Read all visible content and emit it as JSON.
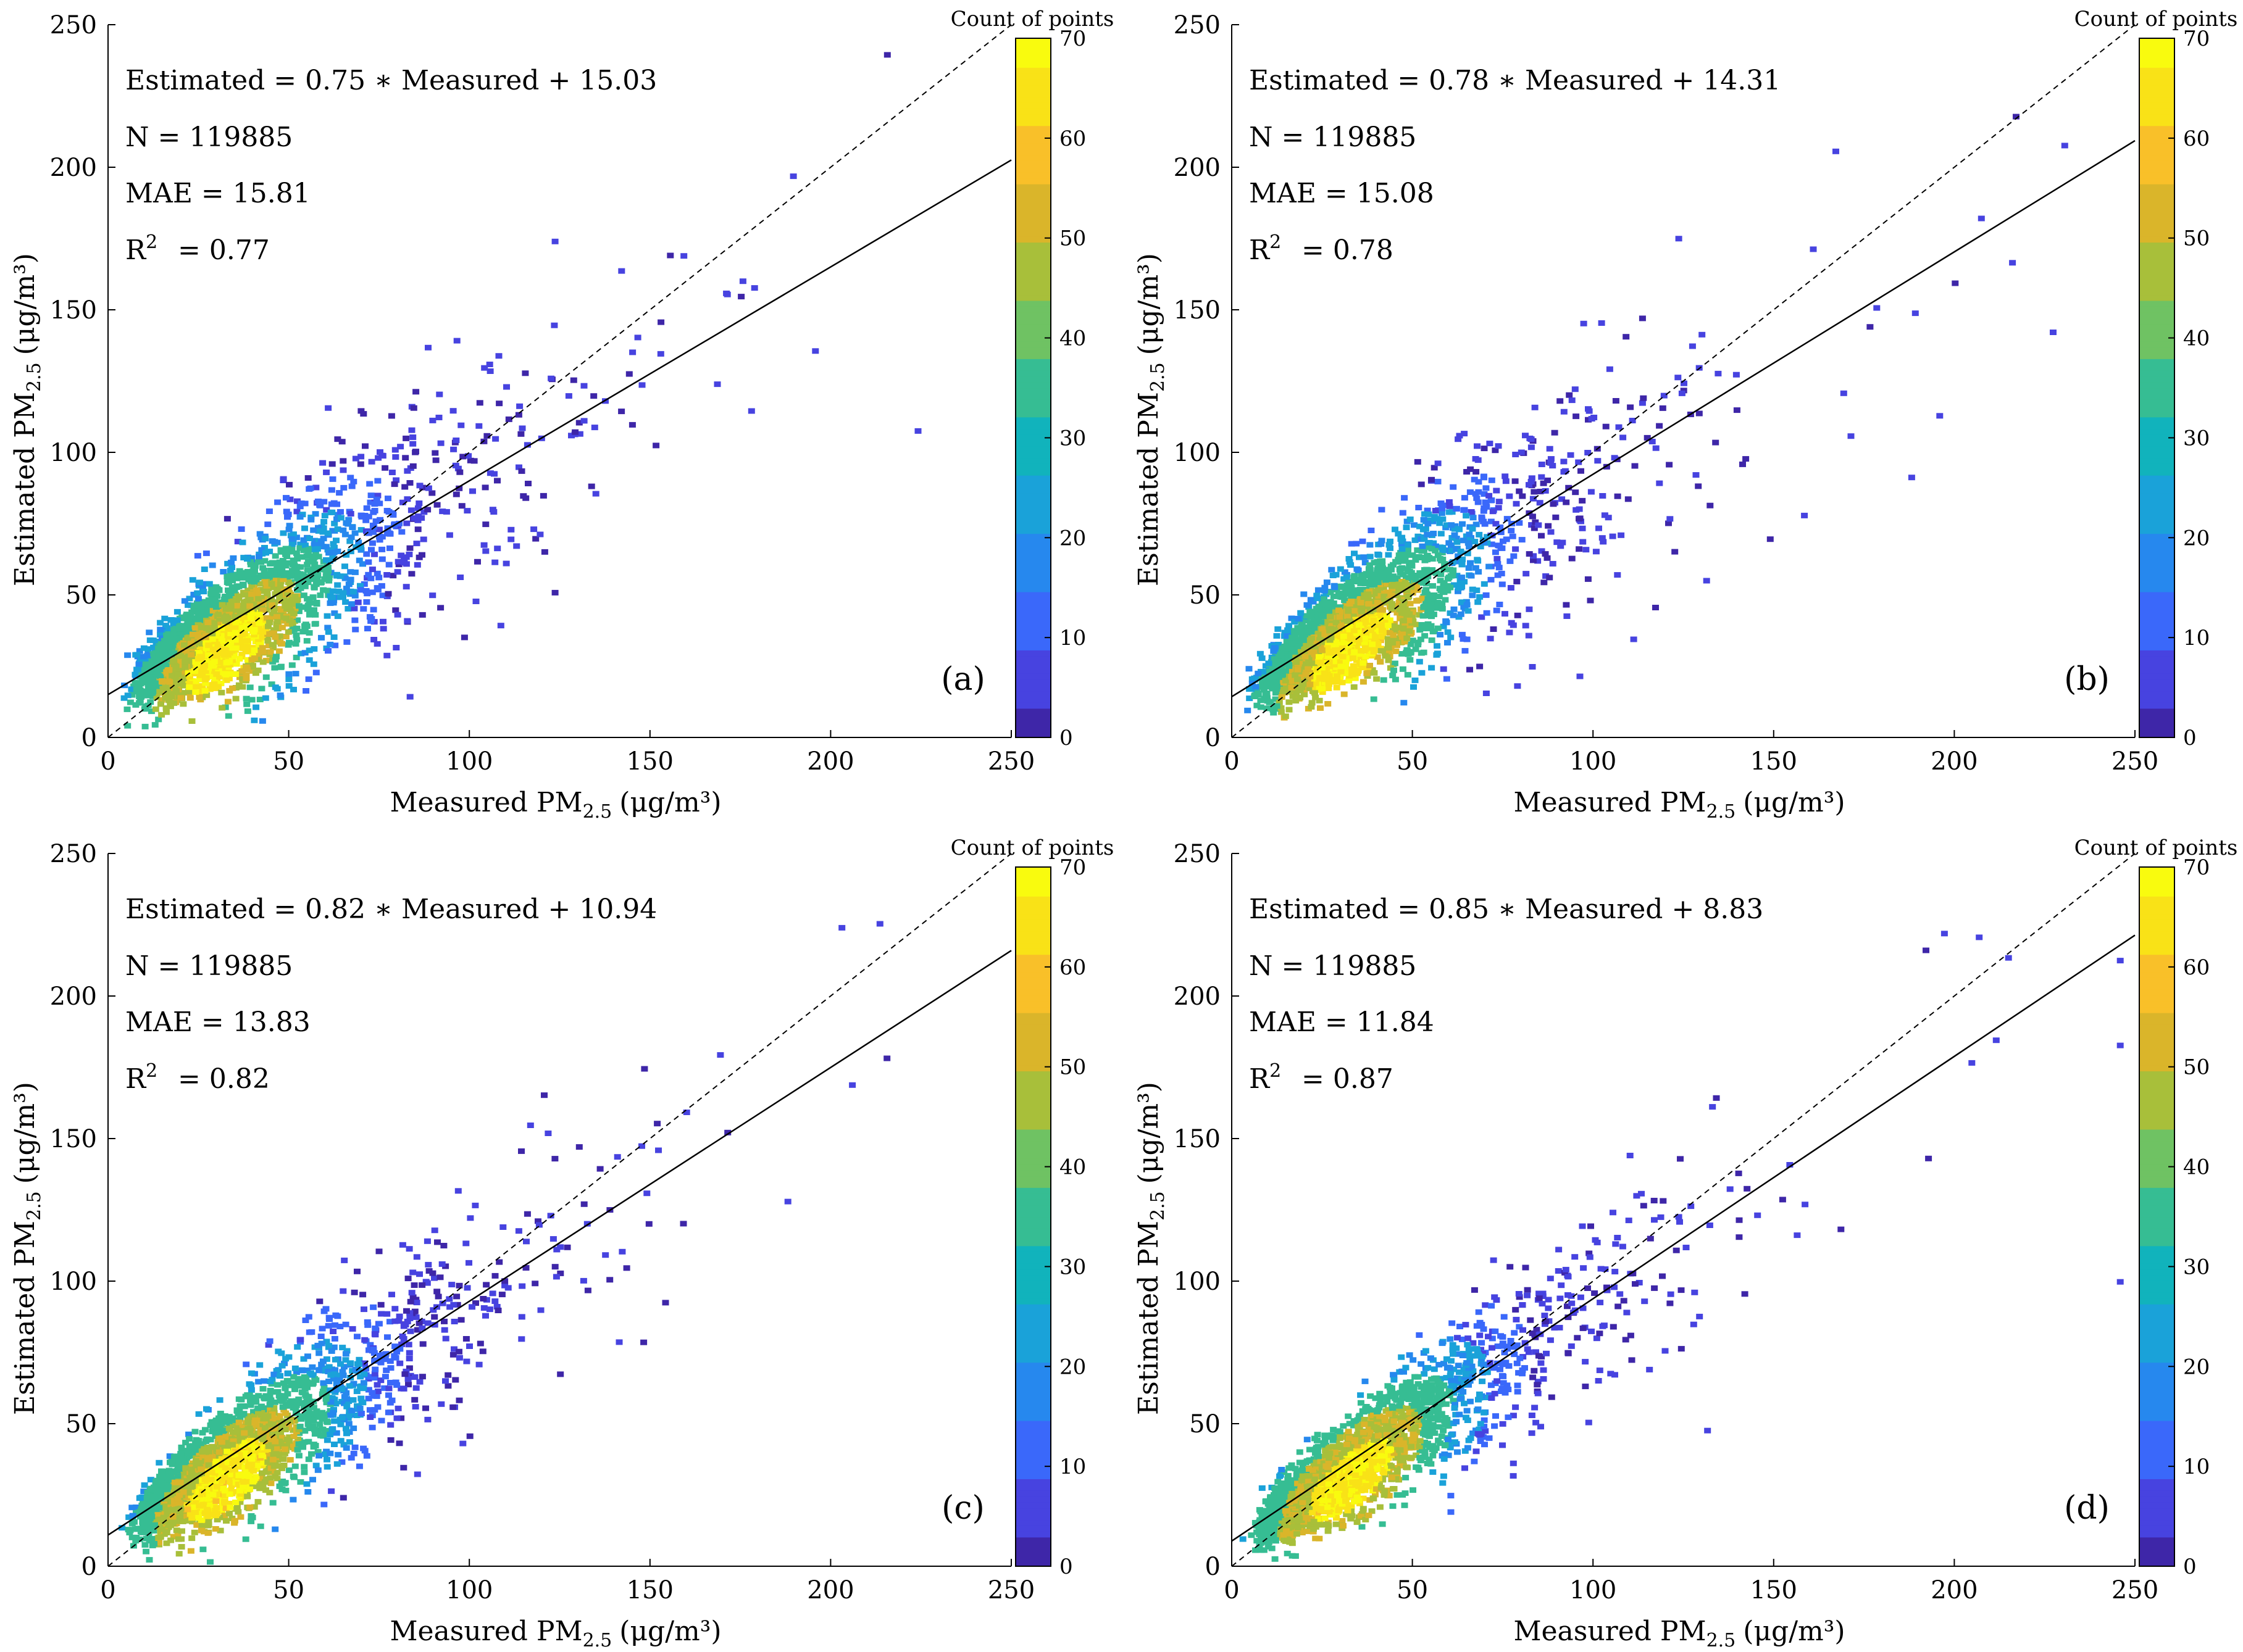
{
  "figure": {
    "colormap": [
      "#3e26a8",
      "#4743e0",
      "#3a68fa",
      "#2688ee",
      "#1aa2d9",
      "#11b3bc",
      "#36bd93",
      "#6fc263",
      "#a8bf3a",
      "#dab52a",
      "#f9c029",
      "#f9e217",
      "#f9fb0e"
    ],
    "scatter_color_levels": [
      0.05,
      0.15,
      0.3,
      0.5,
      0.7,
      0.9
    ]
  },
  "chart_data": [
    {
      "type": "heatmap",
      "panel_label": "(a)",
      "xlabel": "Measured PM",
      "xlabel_sub": "2.5",
      "xlabel_unit": "(μg/m³)",
      "ylabel": "Estimated PM",
      "ylabel_sub": "2.5",
      "ylabel_unit": "(μg/m³)",
      "xlim": [
        0,
        250
      ],
      "ylim": [
        0,
        250
      ],
      "xticks": [
        "0",
        "50",
        "100",
        "150",
        "200",
        "250"
      ],
      "yticks": [
        "0",
        "50",
        "100",
        "150",
        "200",
        "250"
      ],
      "fit": {
        "slope": 0.75,
        "intercept": 15.03
      },
      "equation": "Estimated = 0.75 ∗ Measured + 15.03",
      "n_text": "N = 119885",
      "mae_text": "MAE = 15.81",
      "r2_text": "= 0.77",
      "r2_label": "R",
      "r2_sup": "2",
      "spread": 0.42,
      "colorbar": {
        "title": "Count of points",
        "min": 0,
        "max": 70,
        "ticks": [
          "0",
          "10",
          "20",
          "30",
          "40",
          "50",
          "60",
          "70"
        ]
      }
    },
    {
      "type": "heatmap",
      "panel_label": "(b)",
      "xlabel": "Measured PM",
      "xlabel_sub": "2.5",
      "xlabel_unit": "(μg/m³)",
      "ylabel": "Estimated PM",
      "ylabel_sub": "2.5",
      "ylabel_unit": "(μg/m³)",
      "xlim": [
        0,
        250
      ],
      "ylim": [
        0,
        250
      ],
      "xticks": [
        "0",
        "50",
        "100",
        "150",
        "200",
        "250"
      ],
      "yticks": [
        "0",
        "50",
        "100",
        "150",
        "200",
        "250"
      ],
      "fit": {
        "slope": 0.78,
        "intercept": 14.31
      },
      "equation": "Estimated = 0.78 ∗ Measured + 14.31",
      "n_text": "N = 119885",
      "mae_text": "MAE = 15.08",
      "r2_text": "= 0.78",
      "r2_label": "R",
      "r2_sup": "2",
      "spread": 0.38,
      "colorbar": {
        "title": "Count of points",
        "min": 0,
        "max": 70,
        "ticks": [
          "0",
          "10",
          "20",
          "30",
          "40",
          "50",
          "60",
          "70"
        ]
      }
    },
    {
      "type": "heatmap",
      "panel_label": "(c)",
      "xlabel": "Measured PM",
      "xlabel_sub": "2.5",
      "xlabel_unit": "(μg/m³)",
      "ylabel": "Estimated PM",
      "ylabel_sub": "2.5",
      "ylabel_unit": "(μg/m³)",
      "xlim": [
        0,
        250
      ],
      "ylim": [
        0,
        250
      ],
      "xticks": [
        "0",
        "50",
        "100",
        "150",
        "200",
        "250"
      ],
      "yticks": [
        "0",
        "50",
        "100",
        "150",
        "200",
        "250"
      ],
      "fit": {
        "slope": 0.82,
        "intercept": 10.94
      },
      "equation": "Estimated = 0.82 ∗ Measured + 10.94",
      "n_text": "N = 119885",
      "mae_text": "MAE = 13.83",
      "r2_text": "= 0.82",
      "r2_label": "R",
      "r2_sup": "2",
      "spread": 0.32,
      "colorbar": {
        "title": "Count of points",
        "min": 0,
        "max": 70,
        "ticks": [
          "0",
          "10",
          "20",
          "30",
          "40",
          "50",
          "60",
          "70"
        ]
      }
    },
    {
      "type": "heatmap",
      "panel_label": "(d)",
      "xlabel": "Measured PM",
      "xlabel_sub": "2.5",
      "xlabel_unit": "(μg/m³)",
      "ylabel": "Estimated PM",
      "ylabel_sub": "2.5",
      "ylabel_unit": "(μg/m³)",
      "xlim": [
        0,
        250
      ],
      "ylim": [
        0,
        250
      ],
      "xticks": [
        "0",
        "50",
        "100",
        "150",
        "200",
        "250"
      ],
      "yticks": [
        "0",
        "50",
        "100",
        "150",
        "200",
        "250"
      ],
      "fit": {
        "slope": 0.85,
        "intercept": 8.83
      },
      "equation": "Estimated = 0.85 ∗ Measured + 8.83",
      "n_text": "N = 119885",
      "mae_text": "MAE = 11.84",
      "r2_text": "= 0.87",
      "r2_label": "R",
      "r2_sup": "2",
      "spread": 0.26,
      "colorbar": {
        "title": "Count of points",
        "min": 0,
        "max": 70,
        "ticks": [
          "0",
          "10",
          "20",
          "30",
          "40",
          "50",
          "60",
          "70"
        ]
      }
    }
  ]
}
